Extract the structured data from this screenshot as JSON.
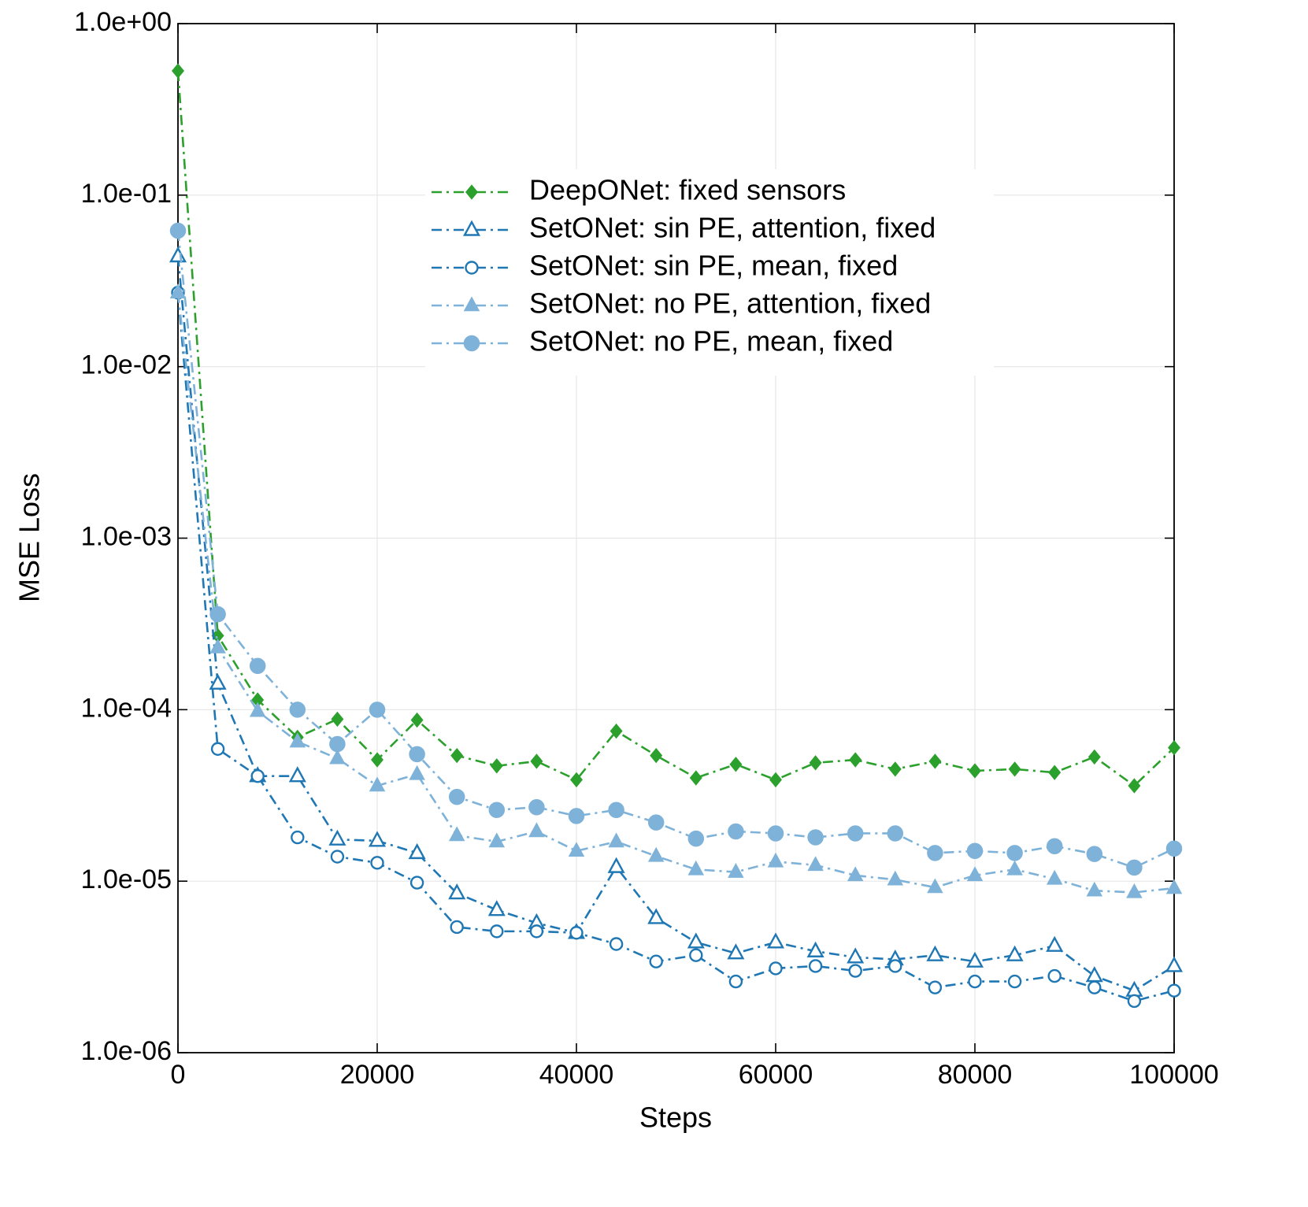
{
  "chart_data": {
    "type": "line",
    "x_label": "Steps",
    "y_label": "MSE Loss",
    "log_y": true,
    "grid": true,
    "legend": "upper center",
    "linestyle": "dashdot",
    "xlim": [
      0,
      100000
    ],
    "xticks": [
      0,
      20000,
      40000,
      60000,
      80000,
      100000
    ],
    "ylim": [
      1e-06,
      1
    ],
    "yticks": [
      {
        "value": 1e-06,
        "label": "1.0e-06"
      },
      {
        "value": 1e-05,
        "label": "1.0e-05"
      },
      {
        "value": 0.0001,
        "label": "1.0e-04"
      },
      {
        "value": 0.001,
        "label": "1.0e-03"
      },
      {
        "value": 0.01,
        "label": "1.0e-02"
      },
      {
        "value": 0.1,
        "label": "1.0e-01"
      },
      {
        "value": 1,
        "label": "1.0e+00"
      }
    ],
    "x": [
      0,
      4000,
      8000,
      12000,
      16000,
      20000,
      24000,
      28000,
      32000,
      36000,
      40000,
      44000,
      48000,
      52000,
      56000,
      60000,
      64000,
      68000,
      72000,
      76000,
      80000,
      84000,
      88000,
      92000,
      96000,
      100000
    ],
    "series": [
      {
        "name": "DeepONet: fixed sensors",
        "color": "#2ca02c",
        "marker": "diamond",
        "values": [
          0.53,
          0.00027,
          0.000114,
          6.9e-05,
          8.8e-05,
          5.1e-05,
          8.7e-05,
          5.4e-05,
          4.7e-05,
          5e-05,
          3.9e-05,
          7.5e-05,
          5.4e-05,
          4e-05,
          4.8e-05,
          3.9e-05,
          4.9e-05,
          5.1e-05,
          4.5e-05,
          5e-05,
          4.4e-05,
          4.5e-05,
          4.3e-05,
          5.3e-05,
          3.6e-05,
          6e-05
        ]
      },
      {
        "name": "SetONet: sin PE, attention, fixed",
        "color": "#1f77b4",
        "marker": "triangle-open",
        "values": [
          0.044,
          0.000142,
          4.1e-05,
          4.1e-05,
          1.75e-05,
          1.72e-05,
          1.46e-05,
          8.5e-06,
          6.8e-06,
          5.7e-06,
          5e-06,
          1.21e-05,
          6.1e-06,
          4.4e-06,
          3.8e-06,
          4.4e-06,
          3.9e-06,
          3.6e-06,
          3.5e-06,
          3.7e-06,
          3.4e-06,
          3.7e-06,
          4.2e-06,
          2.8e-06,
          2.3e-06,
          3.2e-06
        ]
      },
      {
        "name": "SetONet: sin PE, mean, fixed",
        "color": "#1f77b4",
        "marker": "circle-open",
        "values": [
          0.027,
          5.9e-05,
          4.1e-05,
          1.8e-05,
          1.39e-05,
          1.28e-05,
          9.8e-06,
          5.4e-06,
          5.1e-06,
          5.1e-06,
          5e-06,
          4.3e-06,
          3.4e-06,
          3.7e-06,
          2.6e-06,
          3.1e-06,
          3.2e-06,
          3e-06,
          3.2e-06,
          2.4e-06,
          2.6e-06,
          2.6e-06,
          2.8e-06,
          2.4e-06,
          2e-06,
          2.3e-06
        ]
      },
      {
        "name": "SetONet: no PE, attention, fixed",
        "color": "#7eb2d9",
        "marker": "triangle",
        "values": [
          0.027,
          0.00023,
          9.8e-05,
          6.5e-05,
          5.2e-05,
          3.6e-05,
          4.2e-05,
          1.85e-05,
          1.7e-05,
          1.95e-05,
          1.5e-05,
          1.7e-05,
          1.4e-05,
          1.17e-05,
          1.13e-05,
          1.3e-05,
          1.24e-05,
          1.08e-05,
          1.02e-05,
          9.2e-06,
          1.08e-05,
          1.17e-05,
          1.03e-05,
          8.8e-06,
          8.6e-06,
          9.1e-06
        ]
      },
      {
        "name": "SetONet: no PE, mean, fixed",
        "color": "#7eb2d9",
        "marker": "circle",
        "values": [
          0.062,
          0.00036,
          0.00018,
          0.0001,
          6.3e-05,
          0.0001,
          5.5e-05,
          3.1e-05,
          2.6e-05,
          2.7e-05,
          2.4e-05,
          2.6e-05,
          2.2e-05,
          1.77e-05,
          1.95e-05,
          1.9e-05,
          1.8e-05,
          1.9e-05,
          1.9e-05,
          1.46e-05,
          1.5e-05,
          1.46e-05,
          1.6e-05,
          1.44e-05,
          1.2e-05,
          1.55e-05
        ]
      }
    ]
  }
}
